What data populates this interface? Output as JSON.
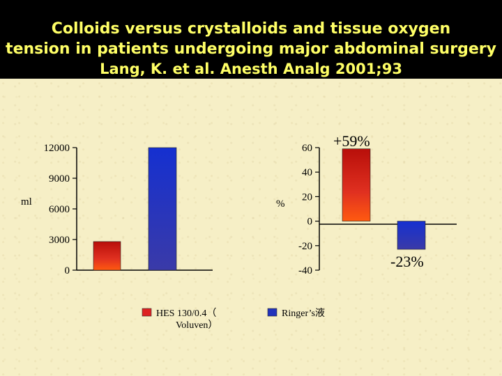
{
  "title": {
    "line1": "Colloids versus crystalloids and tissue oxygen",
    "line2": "tension in patients undergoing major abdominal surgery",
    "line3": "Lang, K. et al. Anesth Analg 2001;93"
  },
  "colors": {
    "title_bg": "#000000",
    "title_text": "#ffff66",
    "hes": "#dd2222",
    "ringer": "#2233bb",
    "background": "#f6efc6"
  },
  "legend": {
    "hes_line1": "HES 130/0.4（",
    "hes_line2": "Voluven）",
    "ringer": "Ringer’s液"
  },
  "chart_data": [
    {
      "type": "bar",
      "ylabel": "ml",
      "ylim": [
        0,
        12000
      ],
      "yticks": [
        "0",
        "3000",
        "6000",
        "9000",
        "12000"
      ],
      "series": [
        {
          "name": "HES 130/0.4（Voluven）",
          "values": [
            2800
          ]
        },
        {
          "name": "Ringer’s液",
          "values": [
            12000
          ]
        }
      ]
    },
    {
      "type": "bar",
      "ylabel": "%",
      "ylim": [
        -40,
        60
      ],
      "yticks": [
        "-40",
        "-20",
        "0",
        "20",
        "40",
        "60"
      ],
      "series": [
        {
          "name": "HES 130/0.4（Voluven）",
          "values": [
            59
          ]
        },
        {
          "name": "Ringer’s液",
          "values": [
            -23
          ]
        }
      ],
      "annotations": [
        "+59%",
        "-23%"
      ]
    }
  ]
}
